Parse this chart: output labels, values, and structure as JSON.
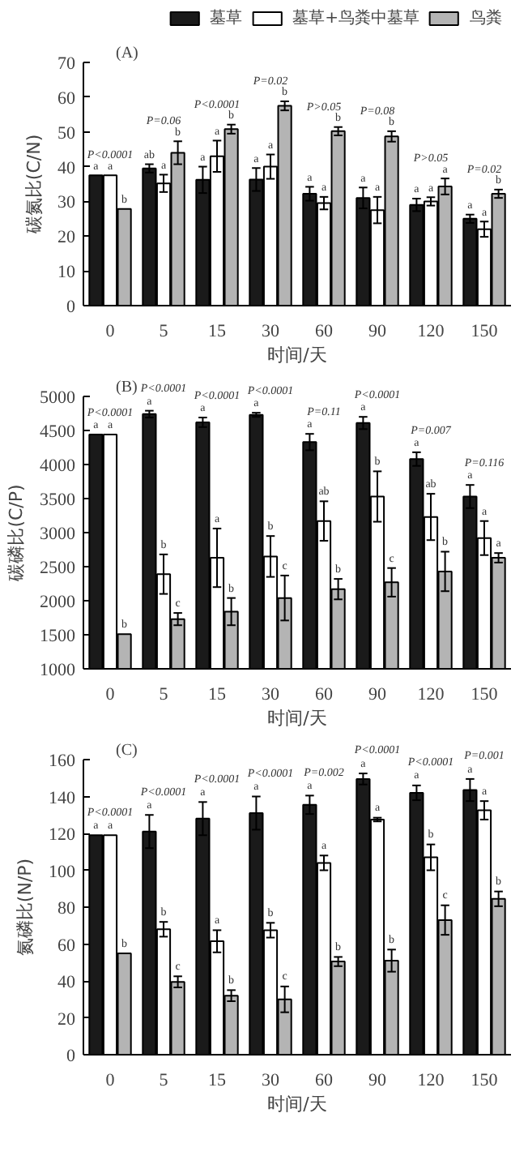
{
  "chart_data": [
    {
      "type": "bar",
      "title": "(A)",
      "xlabel": "时间/天",
      "ylabel": "碳氮比(C/N)",
      "categories": [
        "0",
        "5",
        "15",
        "30",
        "60",
        "90",
        "120",
        "150"
      ],
      "ylim": [
        0,
        70
      ],
      "yticks": [
        0,
        10,
        20,
        30,
        40,
        50,
        60,
        70
      ],
      "grid": false,
      "legend": "top",
      "series": [
        {
          "name": "墓草",
          "color": "#1a1a1a",
          "values": [
            37.5,
            39.5,
            36.2,
            36.3,
            32.2,
            31.0,
            29.0,
            25.0
          ],
          "errors": [
            null,
            1.2,
            3.8,
            3.3,
            2.0,
            3.0,
            1.8,
            1.2
          ],
          "value_labels": [
            "a",
            "ab",
            "a",
            "a",
            "a",
            "a",
            "a",
            "a"
          ]
        },
        {
          "name": "墓草+鸟粪中墓草",
          "color": "#ffffff",
          "values": [
            37.5,
            35.2,
            43.0,
            40.0,
            29.5,
            27.5,
            30.0,
            22.0
          ],
          "errors": [
            null,
            2.5,
            4.5,
            3.5,
            1.8,
            3.8,
            1.2,
            2.2
          ],
          "value_labels": [
            "a",
            "a",
            "a",
            "a",
            "a",
            "a",
            "a",
            "a"
          ]
        },
        {
          "name": "鸟粪",
          "color": "#b4b4b4",
          "values": [
            27.8,
            44.0,
            50.8,
            57.5,
            50.2,
            48.7,
            34.3,
            32.2
          ],
          "errors": [
            null,
            3.3,
            1.3,
            1.3,
            1.2,
            1.5,
            2.3,
            1.2
          ],
          "value_labels": [
            "b",
            "b",
            "b",
            "b",
            "b",
            "b",
            "a",
            "b"
          ]
        }
      ],
      "annotations": [
        "P<0.0001",
        "P=0.06",
        "P<0.0001",
        "P=0.02",
        "P>0.05",
        "P=0.08",
        "P>0.05",
        "P=0.02"
      ]
    },
    {
      "type": "bar",
      "title": "(B)",
      "xlabel": "时间/天",
      "ylabel": "碳磷比(C/P)",
      "categories": [
        "0",
        "5",
        "15",
        "30",
        "60",
        "90",
        "120",
        "150"
      ],
      "ylim": [
        1000,
        5000
      ],
      "yticks": [
        1000,
        1500,
        2000,
        2500,
        3000,
        3500,
        4000,
        4500,
        5000
      ],
      "grid": false,
      "series": [
        {
          "color": "#1a1a1a",
          "values": [
            4440,
            4740,
            4620,
            4730,
            4330,
            4610,
            4080,
            3530
          ],
          "errors": [
            null,
            50,
            70,
            30,
            120,
            90,
            100,
            170
          ],
          "value_labels": [
            "a",
            "a",
            "a",
            "a",
            "a",
            "a",
            "a",
            "a"
          ]
        },
        {
          "color": "#ffffff",
          "values": [
            4440,
            2390,
            2630,
            2650,
            3170,
            3530,
            3230,
            2920
          ],
          "errors": [
            null,
            290,
            430,
            300,
            290,
            370,
            340,
            250
          ],
          "value_labels": [
            "a",
            "b",
            "a",
            "b",
            "ab",
            "b",
            "ab",
            "a"
          ]
        },
        {
          "color": "#b4b4b4",
          "values": [
            1510,
            1730,
            1840,
            2040,
            2170,
            2270,
            2430,
            2630
          ],
          "errors": [
            null,
            90,
            200,
            330,
            150,
            210,
            290,
            70
          ],
          "value_labels": [
            "b",
            "c",
            "b",
            "c",
            "b",
            "c",
            "b",
            "a"
          ]
        }
      ],
      "annotations": [
        "P<0.0001",
        "P<0.0001",
        "P<0.0001",
        "P<0.0001",
        "P=0.11",
        "P<0.0001",
        "P=0.007",
        "P=0.116"
      ]
    },
    {
      "type": "bar",
      "title": "(C)",
      "xlabel": "时间/天",
      "ylabel": "氮磷比(N/P)",
      "categories": [
        "0",
        "5",
        "15",
        "30",
        "60",
        "90",
        "120",
        "150"
      ],
      "ylim": [
        0,
        160
      ],
      "yticks": [
        0,
        20,
        40,
        60,
        80,
        100,
        120,
        140,
        160
      ],
      "grid": false,
      "series": [
        {
          "color": "#1a1a1a",
          "values": [
            119,
            121,
            128,
            131,
            135.5,
            149.5,
            142,
            143.5
          ],
          "errors": [
            null,
            9,
            9,
            9,
            5,
            3,
            4,
            6
          ],
          "value_labels": [
            "a",
            "a",
            "a",
            "a",
            "a",
            "a",
            "a",
            "a"
          ]
        },
        {
          "color": "#ffffff",
          "values": [
            119,
            68,
            61.5,
            67.5,
            104,
            127.5,
            107,
            132.5
          ],
          "errors": [
            null,
            4,
            6,
            4,
            4,
            1,
            7,
            5
          ],
          "value_labels": [
            "a",
            "b",
            "a",
            "b",
            "a",
            "a",
            "b",
            "a"
          ]
        },
        {
          "color": "#b4b4b4",
          "values": [
            55,
            39.5,
            32,
            30,
            50.5,
            51,
            73,
            84.5
          ],
          "errors": [
            null,
            3,
            3,
            7,
            2.5,
            6,
            8,
            4
          ],
          "value_labels": [
            "b",
            "c",
            "b",
            "c",
            "b",
            "b",
            "c",
            "b"
          ]
        }
      ],
      "annotations": [
        "P<0.0001",
        "P<0.0001",
        "P<0.0001",
        "P<0.0001",
        "P=0.002",
        "P<0.0001",
        "P<0.0001",
        "P=0.001"
      ]
    }
  ]
}
